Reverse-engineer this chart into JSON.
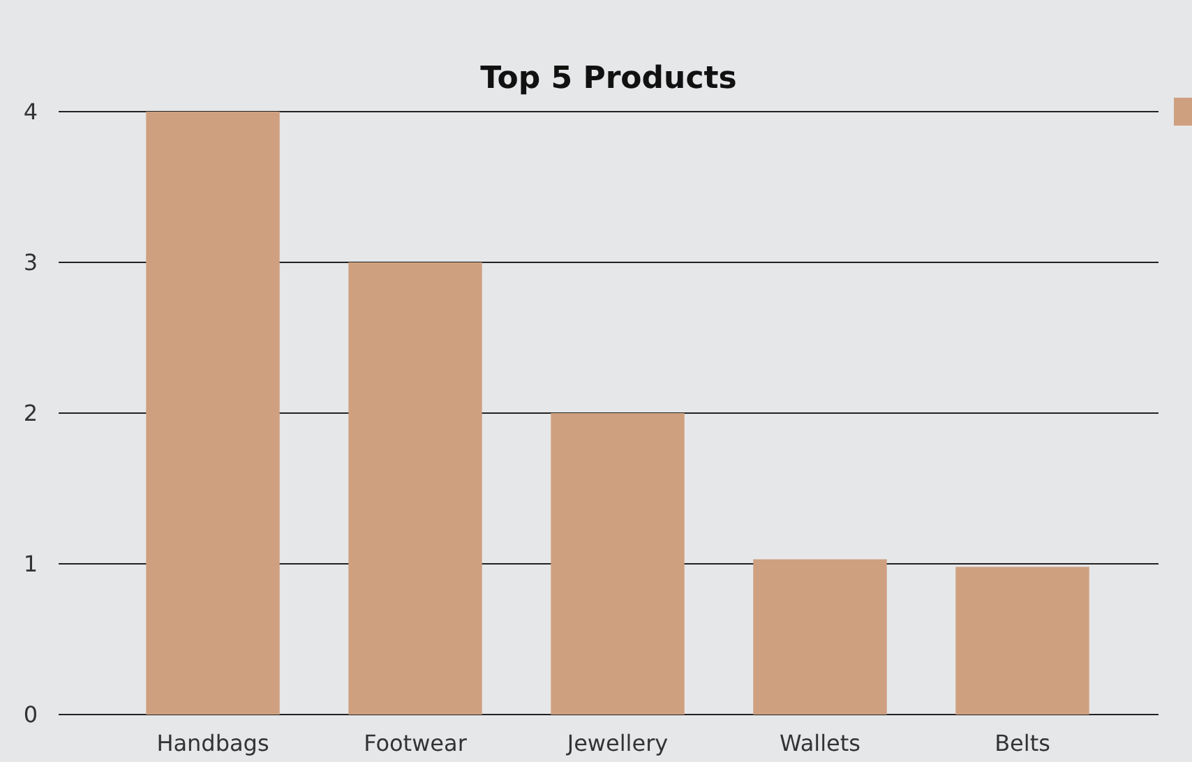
{
  "chart_data": {
    "type": "bar",
    "title": "Top 5 Products",
    "categories": [
      "Handbags",
      "Footwear",
      "Jewellery",
      "Wallets",
      "Belts"
    ],
    "series": [
      {
        "color": "#cfa07f",
        "values": [
          4,
          3,
          2,
          1.03,
          0.98
        ]
      }
    ],
    "ylim": [
      0,
      4
    ],
    "yticks": [
      0,
      1,
      2,
      3,
      4
    ],
    "grid": "y"
  }
}
